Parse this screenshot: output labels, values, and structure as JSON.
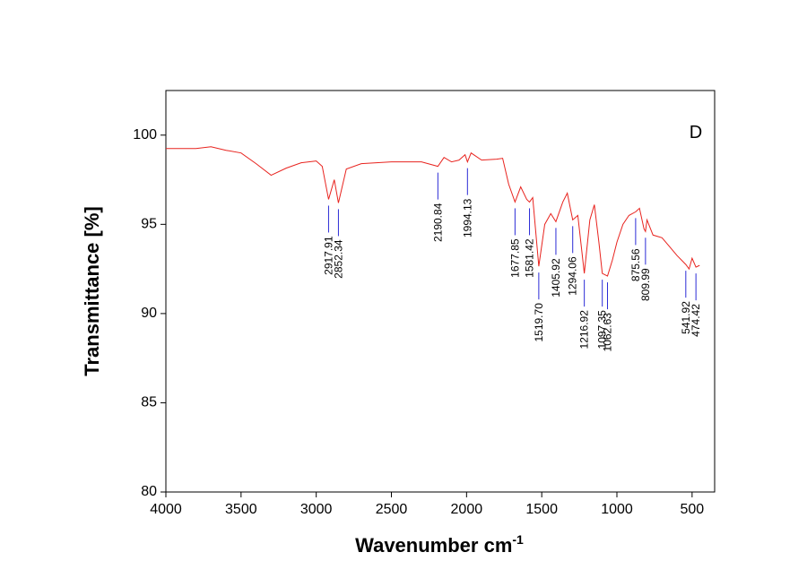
{
  "chart_data": {
    "type": "line",
    "x_label": "Wavenumber cm",
    "x_label_superscript": "-1",
    "y_label": "Transmittance [%]",
    "panel_label": "D",
    "xlim": [
      4000,
      350
    ],
    "xticks": [
      4000,
      3500,
      3000,
      2500,
      2000,
      1500,
      1000,
      500
    ],
    "ylim": [
      80,
      102.5
    ],
    "yticks": [
      80,
      85,
      90,
      95,
      100
    ],
    "x": [
      4000,
      3800,
      3700,
      3600,
      3500,
      3400,
      3300,
      3200,
      3100,
      3000,
      2960,
      2917.91,
      2880,
      2852.34,
      2800,
      2700,
      2500,
      2300,
      2190.84,
      2150,
      2100,
      2050,
      2010,
      1994.13,
      1970,
      1900,
      1800,
      1760,
      1720,
      1677.85,
      1640,
      1600,
      1581.42,
      1560,
      1519.7,
      1480,
      1440,
      1405.92,
      1360,
      1330,
      1294.06,
      1260,
      1216.92,
      1180,
      1150,
      1120,
      1097.35,
      1062.63,
      1030,
      1000,
      960,
      920,
      875.56,
      850,
      820,
      809.99,
      800,
      760,
      700,
      650,
      600,
      541.92,
      520,
      500,
      474.42,
      450
    ],
    "series": [
      {
        "name": "D",
        "color": "#e8231e",
        "values": [
          99.25,
          99.25,
          99.35,
          99.15,
          99.0,
          98.4,
          97.75,
          98.15,
          98.45,
          98.55,
          98.25,
          96.4,
          97.5,
          96.2,
          98.1,
          98.4,
          98.5,
          98.5,
          98.25,
          98.75,
          98.5,
          98.6,
          98.9,
          98.5,
          99.0,
          98.6,
          98.65,
          98.7,
          97.25,
          96.25,
          97.1,
          96.4,
          96.25,
          96.5,
          92.65,
          95.0,
          95.6,
          95.15,
          96.25,
          96.75,
          95.25,
          95.5,
          92.25,
          95.25,
          96.1,
          94.0,
          92.25,
          92.1,
          93.0,
          94.0,
          95.0,
          95.5,
          95.7,
          95.9,
          94.75,
          94.6,
          95.25,
          94.4,
          94.25,
          93.75,
          93.25,
          92.75,
          92.5,
          93.1,
          92.6,
          92.7
        ]
      }
    ],
    "annotation_color": "#2b2bd6",
    "annotations": [
      {
        "value": 2917.91,
        "label": "2917.91"
      },
      {
        "value": 2852.34,
        "label": "2852.34"
      },
      {
        "value": 2190.84,
        "label": "2190.84"
      },
      {
        "value": 1994.13,
        "label": "1994.13"
      },
      {
        "value": 1677.85,
        "label": "1677.85"
      },
      {
        "value": 1581.42,
        "label": "1581.42"
      },
      {
        "value": 1519.7,
        "label": "1519.70"
      },
      {
        "value": 1405.92,
        "label": "1405.92"
      },
      {
        "value": 1294.06,
        "label": "1294.06"
      },
      {
        "value": 1216.92,
        "label": "1216.92"
      },
      {
        "value": 1097.35,
        "label": "1097.35"
      },
      {
        "value": 1062.63,
        "label": "1062.63"
      },
      {
        "value": 875.56,
        "label": "875.56"
      },
      {
        "value": 809.99,
        "label": "809.99"
      },
      {
        "value": 541.92,
        "label": "541.92"
      },
      {
        "value": 474.42,
        "label": "474.42"
      }
    ]
  }
}
